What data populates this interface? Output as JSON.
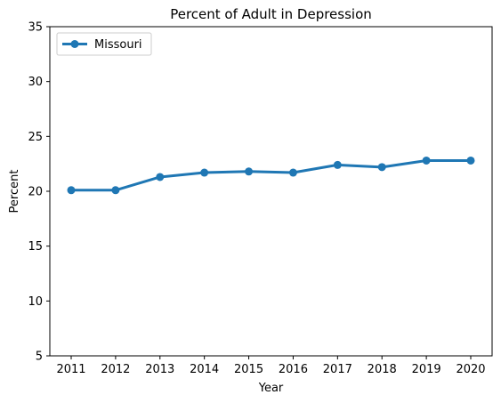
{
  "chart_data": {
    "type": "line",
    "title": "Percent of Adult in Depression",
    "xlabel": "Year",
    "ylabel": "Percent",
    "x": [
      "2011",
      "2012",
      "2013",
      "2014",
      "2015",
      "2016",
      "2017",
      "2018",
      "2019",
      "2020"
    ],
    "series": [
      {
        "name": "Missouri",
        "values": [
          20.1,
          20.1,
          21.3,
          21.7,
          21.8,
          21.7,
          22.4,
          22.2,
          22.8,
          22.8
        ],
        "color": "#1f77b4"
      }
    ],
    "ylim": [
      5,
      35
    ],
    "yticks": [
      "5",
      "10",
      "15",
      "20",
      "25",
      "30",
      "35"
    ],
    "grid": false,
    "legend_position": "upper-left"
  }
}
